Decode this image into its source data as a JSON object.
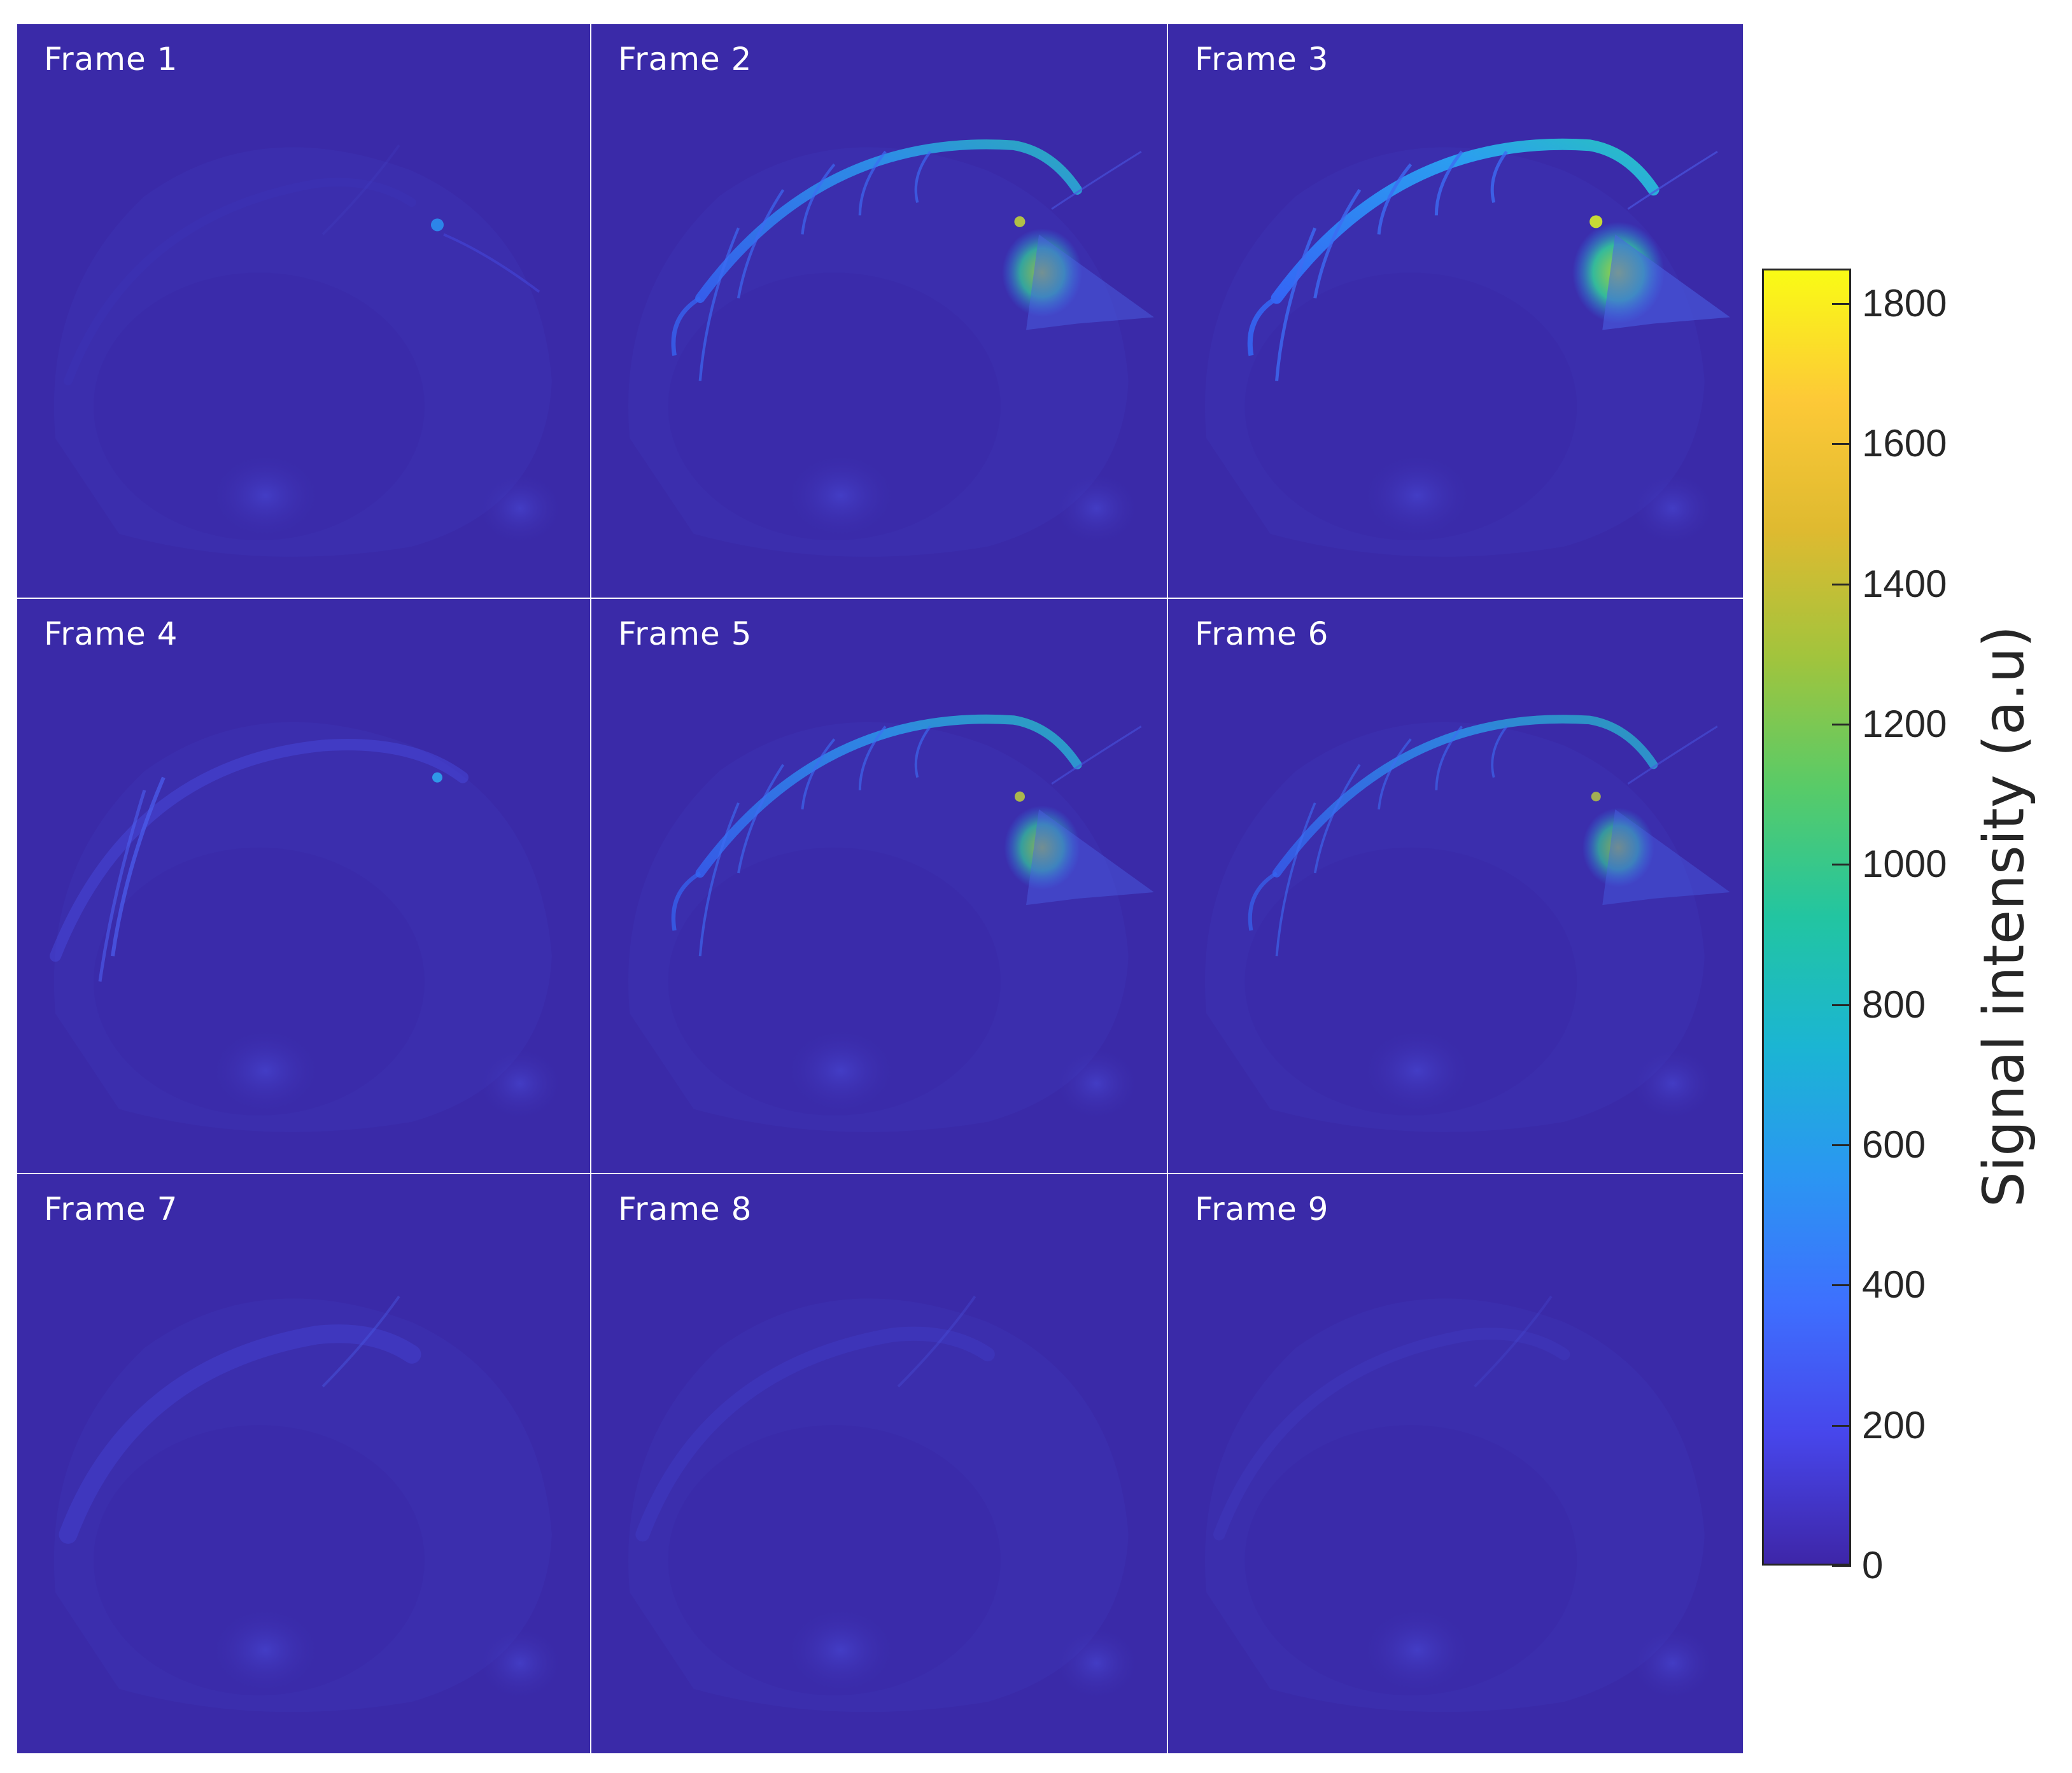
{
  "figure": {
    "panels": [
      {
        "label": "Frame 1",
        "intensity": 0.08
      },
      {
        "label": "Frame 2",
        "intensity": 0.85
      },
      {
        "label": "Frame 3",
        "intensity": 1.0
      },
      {
        "label": "Frame 4",
        "intensity": 0.45
      },
      {
        "label": "Frame 5",
        "intensity": 0.8
      },
      {
        "label": "Frame 6",
        "intensity": 0.75
      },
      {
        "label": "Frame 7",
        "intensity": 0.3
      },
      {
        "label": "Frame 8",
        "intensity": 0.2
      },
      {
        "label": "Frame 9",
        "intensity": 0.15
      }
    ],
    "colorbar": {
      "title": "Signal intensity (a.u)",
      "min": 0,
      "max": 1850,
      "ticks": [
        "0",
        "200",
        "400",
        "600",
        "800",
        "1000",
        "1200",
        "1400",
        "1600",
        "1800"
      ],
      "colors": [
        "#3e26a8",
        "#4746eb",
        "#3e6ffe",
        "#2b96f2",
        "#1bb5d3",
        "#22c5a1",
        "#58cb68",
        "#a1c43d",
        "#dfba30",
        "#fdc937",
        "#f9fb15"
      ]
    },
    "background_color": "#3a2aa8"
  }
}
